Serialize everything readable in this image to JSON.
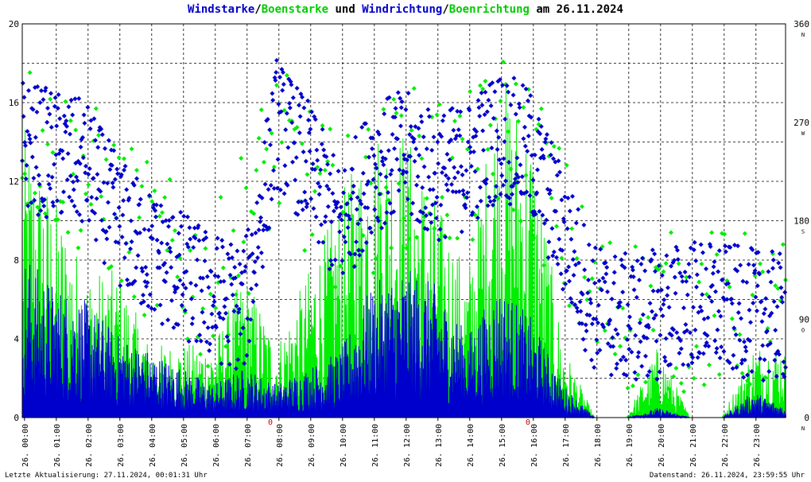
{
  "title_parts": [
    {
      "text": "Windstarke",
      "color": "#0000cc"
    },
    {
      "text": "/",
      "color": "#000000"
    },
    {
      "text": "Boenstarke",
      "color": "#00cc00"
    },
    {
      "text": " und ",
      "color": "#000000"
    },
    {
      "text": "Windrichtung",
      "color": "#0000cc"
    },
    {
      "text": "/",
      "color": "#000000"
    },
    {
      "text": "Boenrichtung",
      "color": "#00cc00"
    },
    {
      "text": " am 26.11.2024",
      "color": "#000000"
    }
  ],
  "footer": {
    "left": "Letzte Aktualisierung: 27.11.2024, 00:01:31 Uhr",
    "right": "Datenstand: 26.11.2024, 23:59:55 Uhr"
  },
  "colors": {
    "wind": "#0000cc",
    "gust": "#00ee00",
    "grid": "#000000",
    "marker": "#cc0000"
  },
  "chart_data": {
    "type": "line",
    "grid": true,
    "x_tick_labels": [
      "26. 00:00",
      "26. 01:00",
      "26. 02:00",
      "26. 03:00",
      "26. 04:00",
      "26. 05:00",
      "26. 06:00",
      "26. 07:00",
      "26. 08:00",
      "26. 09:00",
      "26. 10:00",
      "26. 11:00",
      "26. 12:00",
      "26. 13:00",
      "26. 14:00",
      "26. 15:00",
      "26. 16:00",
      "26. 17:00",
      "26. 18:00",
      "26. 19:00",
      "26. 20:00",
      "26. 21:00",
      "26. 22:00",
      "26. 23:00"
    ],
    "y_left": {
      "ticks": [
        "0",
        "4",
        "8",
        "12",
        "16",
        "20"
      ],
      "lim": [
        0,
        20
      ]
    },
    "y_right": {
      "ticks": [
        "0",
        "90",
        "180",
        "270",
        "360"
      ],
      "lim": [
        0,
        360
      ],
      "compass": [
        "N",
        "O",
        "S",
        "W",
        "N"
      ]
    },
    "markers": [
      "0",
      "0"
    ],
    "series": [
      {
        "name": "Windstarke",
        "kind": "line",
        "color": "#0000cc",
        "x_hours": [
          0,
          1,
          2,
          3,
          4,
          5,
          6,
          7,
          8,
          9,
          10,
          11,
          12,
          13,
          14,
          15,
          16,
          17,
          18,
          19,
          20,
          21,
          22,
          23,
          24
        ],
        "values": [
          5,
          4,
          3.5,
          2.5,
          2,
          1.5,
          1,
          1.5,
          1,
          1.5,
          2,
          4,
          4.5,
          4,
          2.5,
          4,
          3,
          1,
          0,
          0,
          0.3,
          0,
          0,
          0.8,
          0.3
        ]
      },
      {
        "name": "Boenstarke",
        "kind": "line",
        "color": "#00ee00",
        "x_hours": [
          0,
          1,
          2,
          3,
          4,
          5,
          6,
          7,
          8,
          9,
          10,
          11,
          12,
          13,
          14,
          15,
          16,
          17,
          18,
          19,
          20,
          21,
          22,
          23,
          24
        ],
        "values": [
          10,
          7.5,
          5,
          5,
          2.5,
          2.5,
          2.5,
          5,
          2.5,
          5,
          7.5,
          10,
          10,
          7.5,
          5,
          12,
          10,
          2.5,
          0,
          0,
          2.5,
          0,
          0,
          2.5,
          2.5
        ]
      },
      {
        "name": "Windrichtung",
        "kind": "scatter",
        "color": "#0000cc",
        "unit": "deg",
        "x_hours": [
          0,
          1,
          2,
          3,
          4,
          5,
          6,
          7,
          8,
          9,
          10,
          11,
          12,
          13,
          14,
          15,
          16,
          17,
          18,
          19,
          20,
          21,
          22,
          23,
          24
        ],
        "values": [
          250,
          240,
          230,
          180,
          150,
          130,
          110,
          100,
          270,
          230,
          170,
          230,
          240,
          220,
          230,
          260,
          240,
          170,
          100,
          90,
          95,
          105,
          100,
          95,
          90
        ]
      },
      {
        "name": "Boenrichtung",
        "kind": "scatter",
        "color": "#00ee00",
        "unit": "deg",
        "x_hours": [
          0,
          2,
          4,
          6,
          8,
          10,
          12,
          14,
          15,
          16,
          17,
          18,
          20,
          22,
          24
        ],
        "values": [
          260,
          220,
          160,
          110,
          250,
          180,
          230,
          220,
          260,
          240,
          170,
          100,
          95,
          100,
          90
        ]
      }
    ]
  }
}
